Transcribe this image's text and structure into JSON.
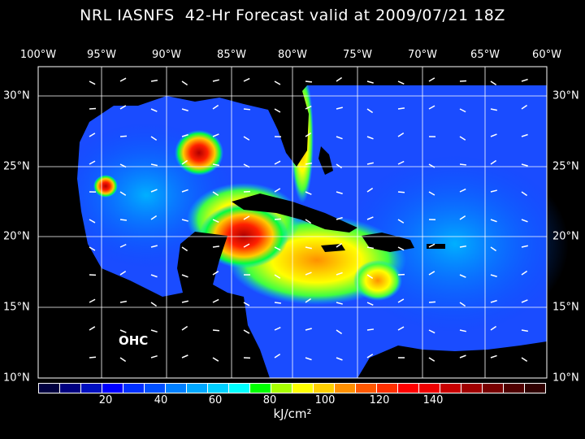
{
  "title": "NRL IASNFS  42-Hr Forecast valid at 2009/07/21 18Z",
  "field_label": "OHC",
  "lon_labels": [
    "100°W",
    "95°W",
    "90°W",
    "85°W",
    "80°W",
    "75°W",
    "70°W",
    "65°W",
    "60°W"
  ],
  "lat_labels": [
    "30°N",
    "25°N",
    "20°N",
    "15°N",
    "10°N"
  ],
  "colorbar": {
    "units": "kJ/cm²",
    "tick_labels": [
      "20",
      "40",
      "60",
      "80",
      "100",
      "120",
      "140"
    ],
    "colors": [
      "#000040",
      "#000080",
      "#0010c0",
      "#0000ff",
      "#0030ff",
      "#0050ff",
      "#0080ff",
      "#00a8ff",
      "#00d0ff",
      "#00ffff",
      "#00ff00",
      "#a8ff00",
      "#ffff00",
      "#ffd000",
      "#ff9000",
      "#ff5800",
      "#ff3000",
      "#ff0000",
      "#f00000",
      "#c80000",
      "#a00000",
      "#780000",
      "#500000",
      "#300000"
    ]
  },
  "colors": {
    "ocean": "#1a4cff",
    "land": "#000000",
    "grid": "#ffffff"
  }
}
